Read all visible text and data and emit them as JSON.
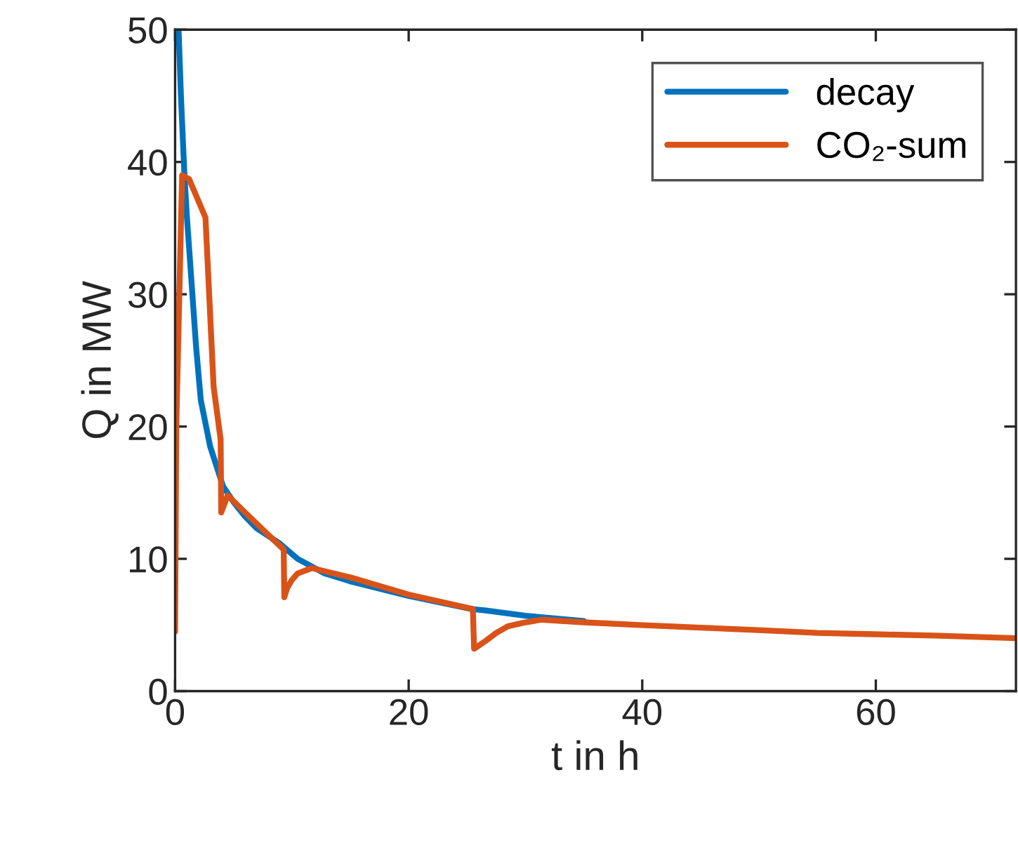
{
  "chart_data": {
    "type": "line",
    "xlabel": "t in h",
    "ylabel": "Q in MW",
    "xlim": [
      0,
      72
    ],
    "ylim": [
      0,
      50
    ],
    "xticks": [
      0,
      20,
      40,
      60
    ],
    "yticks": [
      0,
      10,
      20,
      30,
      40,
      50
    ],
    "legend": "top right",
    "grid": false,
    "line_style": "solid",
    "series": [
      {
        "name": "decay",
        "color": "#0072bd",
        "x": [
          0.3,
          0.5,
          0.8,
          1.0,
          1.4,
          1.8,
          2.2,
          3.0,
          4.1,
          5.0,
          6.0,
          7.0,
          8.9,
          10.5,
          12.8,
          15.0,
          20.0,
          25.4,
          26.6,
          30.0,
          35.0
        ],
        "values": [
          50,
          45,
          39,
          36,
          31,
          26,
          22,
          18.5,
          15.5,
          14.3,
          13.2,
          12.3,
          11.2,
          10.0,
          8.9,
          8.3,
          7.2,
          6.2,
          6.1,
          5.7,
          5.3
        ]
      },
      {
        "name": "CO₂-sum",
        "color": "#d95319",
        "x": [
          0.0,
          0.1,
          0.6,
          1.2,
          2.6,
          3.3,
          3.9,
          3.95,
          4.5,
          6.0,
          8.0,
          9.3,
          9.35,
          9.6,
          10.0,
          10.5,
          11.7,
          15.0,
          20.0,
          25.5,
          25.6,
          26.6,
          27.5,
          28.5,
          30.0,
          31.4,
          35.0,
          39.8,
          45.0,
          50.3,
          55.0,
          59.9,
          65.0,
          72.0
        ],
        "values": [
          4.5,
          20,
          39,
          38.7,
          35.8,
          23,
          19,
          13.5,
          14.8,
          13.5,
          11.8,
          10.7,
          7.1,
          7.8,
          8.4,
          8.9,
          9.3,
          8.6,
          7.3,
          6.2,
          3.2,
          3.8,
          4.4,
          4.9,
          5.2,
          5.4,
          5.2,
          5.0,
          4.8,
          4.6,
          4.4,
          4.3,
          4.2,
          4.0
        ]
      }
    ]
  }
}
